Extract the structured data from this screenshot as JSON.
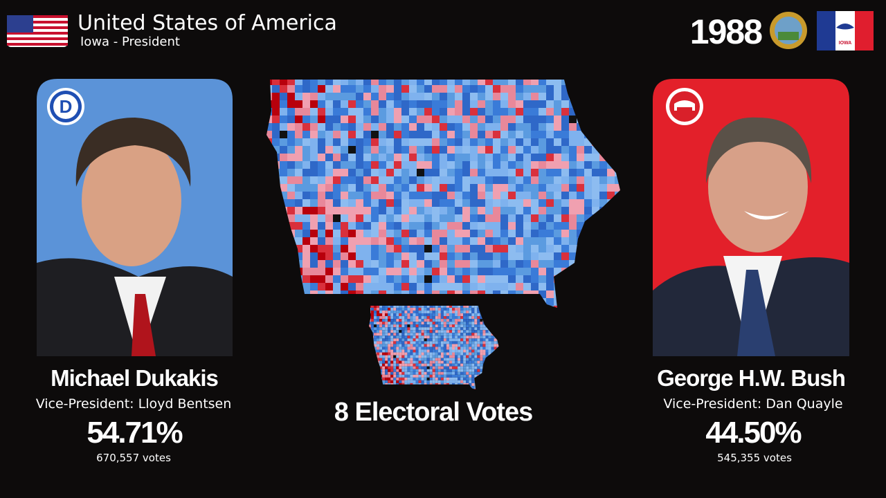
{
  "header": {
    "title": "United States of America",
    "subtitle": "Iowa - President",
    "year": "1988",
    "state_flag_text": "IOWA"
  },
  "center": {
    "electoral_votes": "8 Electoral Votes"
  },
  "candidates": [
    {
      "party_letter": "D",
      "name": "Michael Dukakis",
      "running_mate": "Vice-President: Lloyd Bentsen",
      "percent": "54.71%",
      "votes": "670,557 votes"
    },
    {
      "name": "George H.W. Bush",
      "running_mate": "Vice-President: Dan Quayle",
      "percent": "44.50%",
      "votes": "545,355 votes"
    }
  ]
}
